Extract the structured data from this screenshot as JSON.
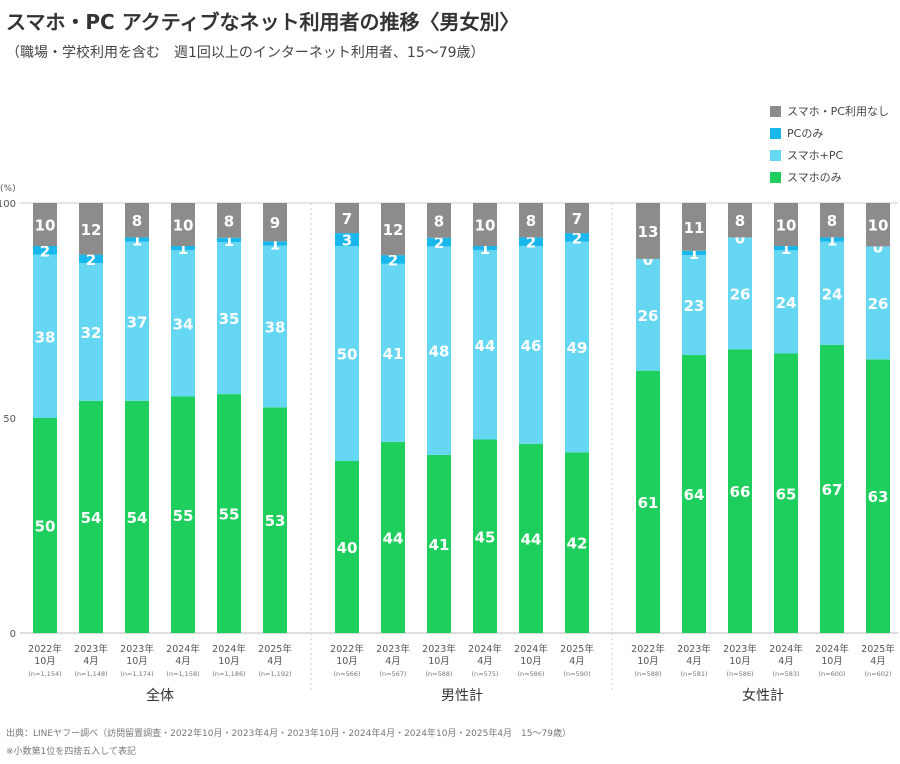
{
  "title": "スマホ・PC アクティブなネット利用者の推移〈男女別〉",
  "subtitle": "（職場・学校利用を含む　週1回以上のインターネット利用者、15～79歳）",
  "footer": {
    "source": "出典：LINEヤフー調べ（訪問留置調査・2022年10月・2023年4月・2023年10月・2024年4月・2024年10月・2025年4月　15～79歳）",
    "note": "※小数第1位を四捨五入して表記"
  },
  "chart_data": {
    "type": "bar",
    "stacked": true,
    "ylabel": "(%)",
    "ylim": [
      0,
      100
    ],
    "yticks": [
      "0",
      "50",
      "100"
    ],
    "legend_position": "top-right",
    "legend": [
      {
        "name": "スマホ・PC利用なし",
        "color": "#8c8c8c"
      },
      {
        "name": "PCのみ",
        "color": "#18b7ec"
      },
      {
        "name": "スマホ+PC",
        "color": "#66d7f3"
      },
      {
        "name": "スマホのみ",
        "color": "#1ecf5e"
      }
    ],
    "groups": [
      {
        "label": "全体",
        "categories": [
          {
            "period": [
              "2022年",
              "10月"
            ],
            "n": "(n=1,154)"
          },
          {
            "period": [
              "2023年",
              "4月"
            ],
            "n": "(n=1,148)"
          },
          {
            "period": [
              "2023年",
              "10月"
            ],
            "n": "(n=1,174)"
          },
          {
            "period": [
              "2024年",
              "4月"
            ],
            "n": "(n=1,158)"
          },
          {
            "period": [
              "2024年",
              "10月"
            ],
            "n": "(n=1,186)"
          },
          {
            "period": [
              "2025年",
              "4月"
            ],
            "n": "(n=1,192)"
          }
        ],
        "series": {
          "スマホのみ": [
            50,
            54,
            54,
            55,
            55,
            53
          ],
          "スマホ+PC": [
            38,
            32,
            37,
            34,
            35,
            38
          ],
          "PCのみ": [
            2,
            2,
            1,
            1,
            1,
            1
          ],
          "スマホ・PC利用なし": [
            10,
            12,
            8,
            10,
            8,
            9
          ]
        }
      },
      {
        "label": "男性計",
        "categories": [
          {
            "period": [
              "2022年",
              "10月"
            ],
            "n": "(n=566)"
          },
          {
            "period": [
              "2023年",
              "4月"
            ],
            "n": "(n=567)"
          },
          {
            "period": [
              "2023年",
              "10月"
            ],
            "n": "(n=588)"
          },
          {
            "period": [
              "2024年",
              "4月"
            ],
            "n": "(n=575)"
          },
          {
            "period": [
              "2024年",
              "10月"
            ],
            "n": "(n=586)"
          },
          {
            "period": [
              "2025年",
              "4月"
            ],
            "n": "(n=590)"
          }
        ],
        "series": {
          "スマホのみ": [
            40,
            44,
            41,
            45,
            44,
            42
          ],
          "スマホ+PC": [
            50,
            41,
            48,
            44,
            46,
            49
          ],
          "PCのみ": [
            3,
            2,
            2,
            1,
            2,
            2
          ],
          "スマホ・PC利用なし": [
            7,
            12,
            8,
            10,
            8,
            7
          ]
        }
      },
      {
        "label": "女性計",
        "categories": [
          {
            "period": [
              "2022年",
              "10月"
            ],
            "n": "(n=588)"
          },
          {
            "period": [
              "2023年",
              "4月"
            ],
            "n": "(n=581)"
          },
          {
            "period": [
              "2023年",
              "10月"
            ],
            "n": "(n=586)"
          },
          {
            "period": [
              "2024年",
              "4月"
            ],
            "n": "(n=583)"
          },
          {
            "period": [
              "2024年",
              "10月"
            ],
            "n": "(n=600)"
          },
          {
            "period": [
              "2025年",
              "4月"
            ],
            "n": "(n=602)"
          }
        ],
        "series": {
          "スマホのみ": [
            61,
            64,
            66,
            65,
            67,
            63
          ],
          "スマホ+PC": [
            26,
            23,
            26,
            24,
            24,
            26
          ],
          "PCのみ": [
            0,
            1,
            0,
            1,
            1,
            0
          ],
          "スマホ・PC利用なし": [
            13,
            11,
            8,
            10,
            8,
            10
          ]
        }
      }
    ]
  }
}
